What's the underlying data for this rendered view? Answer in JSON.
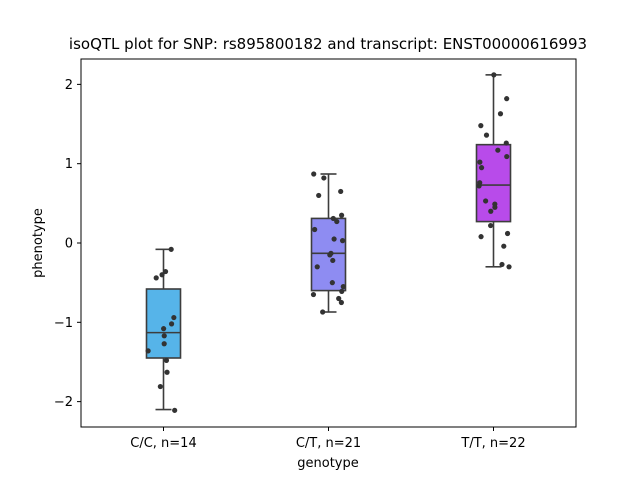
{
  "chart_data": {
    "type": "box",
    "title": "isoQTL plot for SNP: rs895800182 and transcript: ENST00000616993",
    "xlabel": "genotype",
    "ylabel": "phenotype",
    "ylim": [
      -2.32,
      2.32
    ],
    "yticks": [
      -2,
      -1,
      0,
      1,
      2
    ],
    "categories": [
      "C/C, n=14",
      "C/T, n=21",
      "T/T, n=22"
    ],
    "colors": [
      "#56b4e9",
      "#8e8cf2",
      "#b84bea"
    ],
    "boxes": [
      {
        "category": "C/C, n=14",
        "whisker_low": -2.1,
        "q1": -1.45,
        "median": -1.13,
        "q3": -0.58,
        "whisker_high": -0.08
      },
      {
        "category": "C/T, n=21",
        "whisker_low": -0.87,
        "q1": -0.6,
        "median": -0.13,
        "q3": 0.31,
        "whisker_high": 0.87
      },
      {
        "category": "T/T, n=22",
        "whisker_low": -0.3,
        "q1": 0.27,
        "median": 0.73,
        "q3": 1.24,
        "whisker_high": 2.12
      }
    ],
    "points": [
      {
        "category": "C/C, n=14",
        "values": [
          -0.08,
          -0.36,
          -0.4,
          -0.44,
          -0.94,
          -1.02,
          -1.08,
          -1.17,
          -1.27,
          -1.36,
          -1.48,
          -1.63,
          -1.81,
          -2.11
        ]
      },
      {
        "category": "C/T, n=21",
        "values": [
          0.87,
          0.82,
          0.65,
          0.6,
          0.35,
          0.31,
          0.27,
          0.17,
          0.05,
          0.03,
          -0.13,
          -0.15,
          -0.22,
          -0.5,
          -0.55,
          -0.61,
          -0.65,
          -0.7,
          -0.75,
          -0.87,
          -0.3
        ]
      },
      {
        "category": "T/T, n=22",
        "values": [
          2.12,
          1.82,
          1.63,
          1.48,
          1.36,
          1.26,
          1.17,
          1.09,
          1.02,
          0.95,
          0.76,
          0.72,
          0.53,
          0.49,
          0.45,
          0.4,
          0.22,
          0.12,
          0.08,
          -0.04,
          -0.27,
          -0.3
        ]
      }
    ]
  }
}
